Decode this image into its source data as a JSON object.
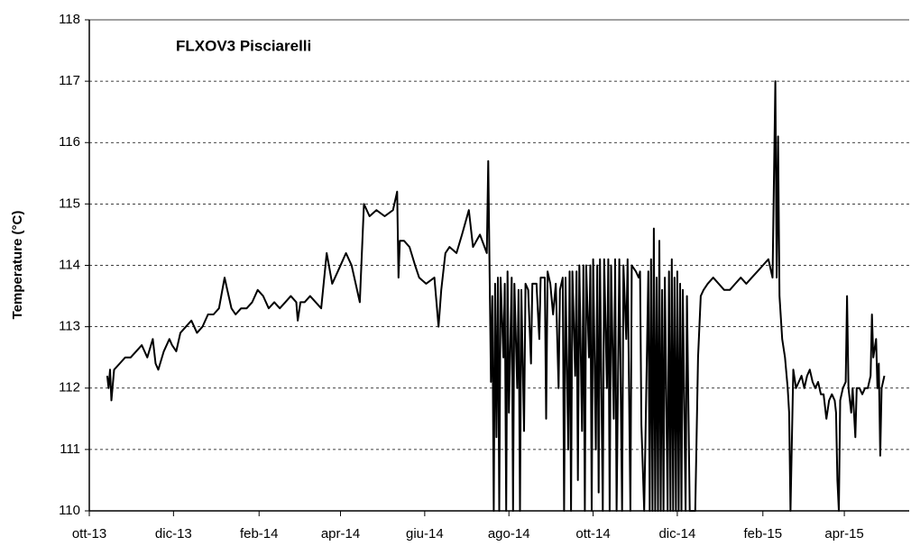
{
  "chart_data": {
    "type": "line",
    "title": "FLXOV3 Pisciarelli",
    "y_label": "Temperature (°C)",
    "xlim": [
      0,
      594
    ],
    "xticks": [
      {
        "value": 0,
        "label": "ott-13"
      },
      {
        "value": 61,
        "label": "dic-13"
      },
      {
        "value": 123,
        "label": "feb-14"
      },
      {
        "value": 182,
        "label": "apr-14"
      },
      {
        "value": 243,
        "label": "giu-14"
      },
      {
        "value": 304,
        "label": "ago-14"
      },
      {
        "value": 365,
        "label": "ott-14"
      },
      {
        "value": 426,
        "label": "dic-14"
      },
      {
        "value": 488,
        "label": "feb-15"
      },
      {
        "value": 547,
        "label": "apr-15"
      }
    ],
    "ylim": [
      110,
      118
    ],
    "yticks": [
      110,
      111,
      112,
      113,
      114,
      115,
      116,
      117,
      118
    ],
    "grid": true,
    "series": [
      {
        "color": "#000000",
        "x": [
          13,
          14,
          15,
          16,
          18,
          22,
          26,
          30,
          34,
          38,
          42,
          46,
          48,
          50,
          54,
          58,
          60,
          63,
          66,
          70,
          74,
          78,
          82,
          86,
          90,
          94,
          98,
          100,
          103,
          106,
          110,
          114,
          118,
          122,
          126,
          130,
          134,
          138,
          142,
          146,
          150,
          151,
          153,
          156,
          160,
          164,
          168,
          172,
          176,
          180,
          186,
          190,
          196,
          199,
          203,
          208,
          214,
          220,
          223,
          224,
          225,
          228,
          232,
          236,
          239,
          244,
          250,
          253,
          255,
          258,
          261,
          266,
          270,
          275,
          278,
          283,
          288,
          289,
          291,
          292,
          293,
          294,
          295,
          296,
          297,
          298,
          300,
          301,
          302,
          303,
          304,
          306,
          307,
          308,
          310,
          311,
          312,
          313,
          315,
          316,
          318,
          320,
          321,
          324,
          326,
          327,
          330,
          331,
          332,
          334,
          336,
          338,
          340,
          341,
          343,
          344,
          345,
          347,
          348,
          349,
          350,
          352,
          353,
          354,
          355,
          357,
          358,
          359,
          360,
          362,
          363,
          364,
          365,
          367,
          368,
          369,
          370,
          372,
          373,
          375,
          376,
          377,
          378,
          380,
          381,
          382,
          384,
          386,
          387,
          389,
          390,
          392,
          393,
          396,
          398,
          399,
          400,
          402,
          405,
          406,
          407,
          408,
          409,
          410,
          411,
          412,
          413,
          414,
          415,
          416,
          417,
          419,
          420,
          421,
          422,
          423,
          424,
          425,
          426,
          427,
          428,
          429,
          430,
          432,
          433,
          435,
          437,
          439,
          441,
          443,
          445,
          448,
          452,
          456,
          460,
          464,
          468,
          472,
          476,
          480,
          484,
          488,
          492,
          495,
          497,
          498,
          499,
          500,
          502,
          504,
          506,
          507,
          508,
          510,
          512,
          514,
          516,
          518,
          520,
          522,
          524,
          526,
          528,
          530,
          532,
          534,
          536,
          538,
          540,
          541,
          542,
          543,
          544,
          546,
          548,
          549,
          550,
          552,
          553,
          555,
          556,
          558,
          560,
          562,
          564,
          566,
          567,
          568,
          570,
          571,
          572,
          573,
          574,
          576
        ],
        "values": [
          112.2,
          112.0,
          112.3,
          111.8,
          112.3,
          112.4,
          112.5,
          112.5,
          112.6,
          112.7,
          112.5,
          112.8,
          112.4,
          112.3,
          112.6,
          112.8,
          112.7,
          112.6,
          112.9,
          113.0,
          113.1,
          112.9,
          113.0,
          113.2,
          113.2,
          113.3,
          113.8,
          113.6,
          113.3,
          113.2,
          113.3,
          113.3,
          113.4,
          113.6,
          113.5,
          113.3,
          113.4,
          113.3,
          113.4,
          113.5,
          113.4,
          113.1,
          113.4,
          113.4,
          113.5,
          113.4,
          113.3,
          114.2,
          113.7,
          113.9,
          114.2,
          114.0,
          113.4,
          115.0,
          114.8,
          114.9,
          114.8,
          114.9,
          115.2,
          113.8,
          114.4,
          114.4,
          114.3,
          114.0,
          113.8,
          113.7,
          113.8,
          113.0,
          113.6,
          114.2,
          114.3,
          114.2,
          114.5,
          114.9,
          114.3,
          114.5,
          114.2,
          115.7,
          112.1,
          113.5,
          110,
          113.7,
          111.2,
          113.8,
          110,
          113.8,
          112.5,
          113.7,
          110,
          113.9,
          111.6,
          113.8,
          110,
          113.7,
          112.0,
          113.6,
          110,
          113.6,
          111.3,
          113.7,
          113.6,
          112.4,
          113.7,
          113.7,
          112.8,
          113.8,
          113.8,
          111.5,
          113.9,
          113.7,
          113.2,
          113.7,
          112.0,
          113.6,
          113.8,
          110,
          113.8,
          111.0,
          113.9,
          110,
          113.9,
          112.2,
          113.9,
          110.5,
          114.0,
          111.3,
          114.0,
          110,
          114.0,
          112.5,
          114.0,
          110,
          114.1,
          111.0,
          114.0,
          110.3,
          114.1,
          110,
          114.1,
          112.0,
          114.1,
          110,
          114.0,
          111.5,
          114.1,
          110,
          114.1,
          110,
          114.0,
          112.8,
          114.1,
          110,
          114.0,
          113.9,
          113.8,
          113.9,
          111.4,
          110,
          113.9,
          110,
          114.1,
          110,
          114.6,
          110,
          113.8,
          110,
          114.4,
          110,
          113.6,
          110,
          113.8,
          110,
          113.9,
          110,
          114.1,
          110,
          113.8,
          110,
          113.9,
          110,
          113.7,
          110,
          113.6,
          110,
          113.5,
          110,
          110,
          110,
          112.5,
          113.5,
          113.6,
          113.7,
          113.8,
          113.7,
          113.6,
          113.6,
          113.7,
          113.8,
          113.7,
          113.8,
          113.9,
          114.0,
          114.1,
          113.8,
          117.0,
          113.8,
          116.1,
          113.5,
          112.8,
          112.5,
          112.0,
          111.6,
          110,
          112.3,
          112.0,
          112.1,
          112.2,
          112.0,
          112.2,
          112.3,
          112.1,
          112.0,
          112.1,
          111.9,
          111.9,
          111.5,
          111.8,
          111.9,
          111.8,
          111.6,
          110.5,
          110.0,
          111.8,
          112.0,
          112.1,
          113.5,
          112.0,
          111.6,
          112.0,
          111.2,
          112.0,
          112.0,
          111.9,
          112.0,
          112.0,
          112.2,
          113.2,
          112.5,
          112.8,
          112.0,
          112.4,
          110.9,
          112.0,
          112.2
        ]
      }
    ]
  }
}
